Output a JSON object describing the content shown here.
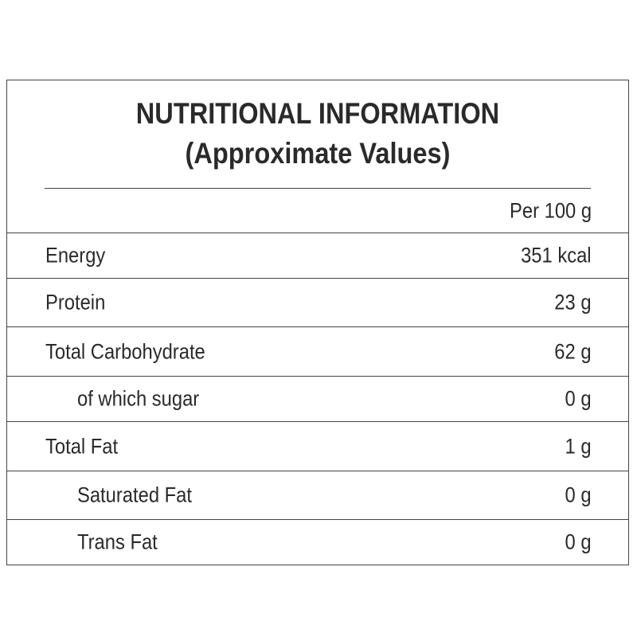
{
  "header": {
    "title": "NUTRITIONAL INFORMATION",
    "subtitle": "(Approximate Values)"
  },
  "table": {
    "column_header": "Per 100 g",
    "rows": [
      [
        "Energy",
        "351 kcal"
      ],
      [
        "Protein",
        "23 g"
      ],
      [
        "Total Carbohydrate",
        "62 g"
      ],
      [
        "of which sugar",
        "0 g"
      ],
      [
        "Total Fat",
        "1 g"
      ],
      [
        "Saturated Fat",
        "0 g"
      ],
      [
        "Trans Fat",
        "0 g"
      ]
    ],
    "indented_rows": [
      3,
      5,
      6
    ]
  }
}
